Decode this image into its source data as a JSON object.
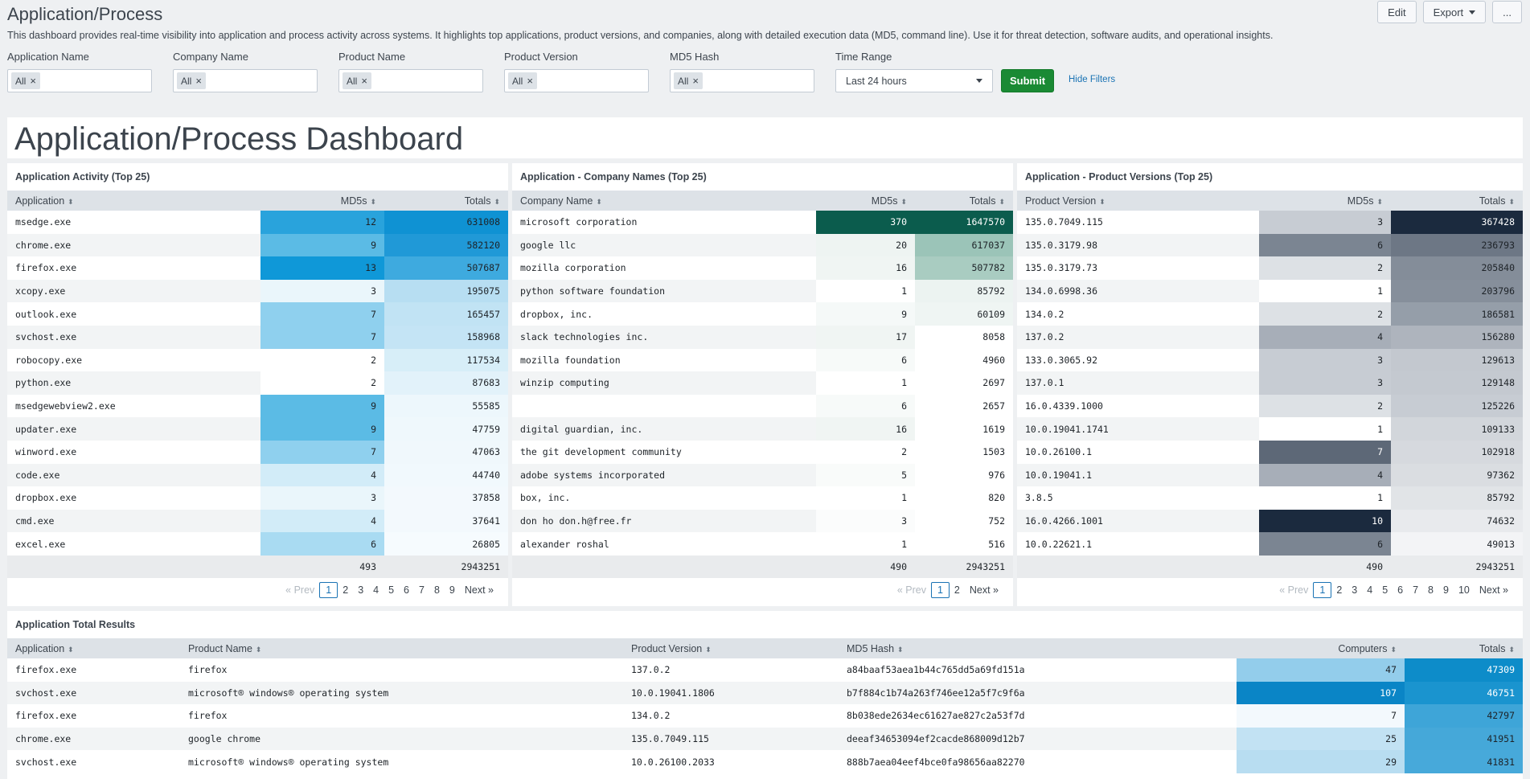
{
  "header": {
    "title": "Application/Process",
    "description": "This dashboard provides real-time visibility into application and process activity across systems. It highlights top applications, product versions, and companies, along with detailed execution data (MD5, command line). Use it for threat detection, software audits, and operational insights.",
    "edit_label": "Edit",
    "export_label": "Export",
    "more_label": "..."
  },
  "filters": {
    "items": [
      {
        "label": "Application Name",
        "chip": "All"
      },
      {
        "label": "Company Name",
        "chip": "All"
      },
      {
        "label": "Product Name",
        "chip": "All"
      },
      {
        "label": "Product Version",
        "chip": "All"
      },
      {
        "label": "MD5 Hash",
        "chip": "All"
      }
    ],
    "time_range_label": "Time Range",
    "time_range_value": "Last 24 hours",
    "submit_label": "Submit",
    "hide_filters_label": "Hide Filters"
  },
  "dashboard_title": "Application/Process Dashboard",
  "colors": {
    "blue_dark": "#0a8dcf",
    "green_dark": "#0a5a4b",
    "navy_dark": "#1b2a3e"
  },
  "panel_apps": {
    "title": "Application Activity (Top 25)",
    "columns": [
      "Application",
      "MD5s",
      "Totals"
    ],
    "rows": [
      {
        "name": "msedge.exe",
        "md5s": "12",
        "totals": "631008",
        "c1": "#29a3dc",
        "c2": "#0f92d3",
        "d1": false,
        "d2": false
      },
      {
        "name": "chrome.exe",
        "md5s": "9",
        "totals": "582120",
        "c1": "#5bbbe5",
        "c2": "#2099d7",
        "d1": false,
        "d2": false
      },
      {
        "name": "firefox.exe",
        "md5s": "13",
        "totals": "507687",
        "c1": "#0f98d8",
        "c2": "#3eaadf",
        "d1": false,
        "d2": false
      },
      {
        "name": "xcopy.exe",
        "md5s": "3",
        "totals": "195075",
        "c1": "#eaf6fb",
        "c2": "#b7def2",
        "d1": false,
        "d2": false
      },
      {
        "name": "outlook.exe",
        "md5s": "7",
        "totals": "165457",
        "c1": "#8fd0ee",
        "c2": "#c1e3f4",
        "d1": false,
        "d2": false
      },
      {
        "name": "svchost.exe",
        "md5s": "7",
        "totals": "158968",
        "c1": "#8fd0ee",
        "c2": "#c4e4f5",
        "d1": false,
        "d2": false
      },
      {
        "name": "robocopy.exe",
        "md5s": "2",
        "totals": "117534",
        "c1": "#ffffff",
        "c2": "#d7eef8",
        "d1": false,
        "d2": false
      },
      {
        "name": "python.exe",
        "md5s": "2",
        "totals": "87683",
        "c1": "#ffffff",
        "c2": "#e2f2fa",
        "d1": false,
        "d2": false
      },
      {
        "name": "msedgewebview2.exe",
        "md5s": "9",
        "totals": "55585",
        "c1": "#5bbbe5",
        "c2": "#edf7fc",
        "d1": false,
        "d2": false
      },
      {
        "name": "updater.exe",
        "md5s": "9",
        "totals": "47759",
        "c1": "#5bbbe5",
        "c2": "#eff8fc",
        "d1": false,
        "d2": false
      },
      {
        "name": "winword.exe",
        "md5s": "7",
        "totals": "47063",
        "c1": "#8fd0ee",
        "c2": "#f0f8fc",
        "d1": false,
        "d2": false
      },
      {
        "name": "code.exe",
        "md5s": "4",
        "totals": "44740",
        "c1": "#d2ecf8",
        "c2": "#f1f9fd",
        "d1": false,
        "d2": false
      },
      {
        "name": "dropbox.exe",
        "md5s": "3",
        "totals": "37858",
        "c1": "#eaf6fb",
        "c2": "#f3f9fd",
        "d1": false,
        "d2": false
      },
      {
        "name": "cmd.exe",
        "md5s": "4",
        "totals": "37641",
        "c1": "#d2ecf8",
        "c2": "#f3f9fd",
        "d1": false,
        "d2": false
      },
      {
        "name": "excel.exe",
        "md5s": "6",
        "totals": "26805",
        "c1": "#a9dbf2",
        "c2": "#f6fbfe",
        "d1": false,
        "d2": false
      }
    ],
    "total_md5s": "493",
    "total_totals": "2943251",
    "pager": {
      "prev": "« Prev",
      "pages": [
        "1",
        "2",
        "3",
        "4",
        "5",
        "6",
        "7",
        "8",
        "9"
      ],
      "next": "Next »"
    }
  },
  "panel_companies": {
    "title": "Application - Company Names (Top 25)",
    "columns": [
      "Company Name",
      "MD5s",
      "Totals"
    ],
    "rows": [
      {
        "name": "microsoft corporation",
        "md5s": "370",
        "totals": "1647570",
        "c1": "#0b5c4d",
        "c2": "#0b5c4d",
        "d1": true,
        "d2": true
      },
      {
        "name": "google llc",
        "md5s": "20",
        "totals": "617037",
        "c1": "#eef4f2",
        "c2": "#9bc4b8",
        "d1": false,
        "d2": false
      },
      {
        "name": "mozilla corporation",
        "md5s": "16",
        "totals": "507782",
        "c1": "#f0f5f3",
        "c2": "#a9ccc1",
        "d1": false,
        "d2": false
      },
      {
        "name": "python software foundation",
        "md5s": "1",
        "totals": "85792",
        "c1": "#ffffff",
        "c2": "#ecf3f1",
        "d1": false,
        "d2": false
      },
      {
        "name": "dropbox, inc.",
        "md5s": "9",
        "totals": "60109",
        "c1": "#f5f9f8",
        "c2": "#eff5f3",
        "d1": false,
        "d2": false
      },
      {
        "name": "slack technologies inc.",
        "md5s": "17",
        "totals": "8058",
        "c1": "#f0f5f3",
        "c2": "#ffffff",
        "d1": false,
        "d2": false
      },
      {
        "name": "mozilla foundation",
        "md5s": "6",
        "totals": "4960",
        "c1": "#f7faf9",
        "c2": "#ffffff",
        "d1": false,
        "d2": false
      },
      {
        "name": "winzip computing",
        "md5s": "1",
        "totals": "2697",
        "c1": "#ffffff",
        "c2": "#ffffff",
        "d1": false,
        "d2": false
      },
      {
        "name": "",
        "md5s": "6",
        "totals": "2657",
        "c1": "#f7faf9",
        "c2": "#ffffff",
        "d1": false,
        "d2": false
      },
      {
        "name": "digital guardian, inc.",
        "md5s": "16",
        "totals": "1619",
        "c1": "#f0f5f3",
        "c2": "#ffffff",
        "d1": false,
        "d2": false
      },
      {
        "name": "the git development community",
        "md5s": "2",
        "totals": "1503",
        "c1": "#ffffff",
        "c2": "#ffffff",
        "d1": false,
        "d2": false
      },
      {
        "name": "adobe systems incorporated",
        "md5s": "5",
        "totals": "976",
        "c1": "#f9fbfa",
        "c2": "#ffffff",
        "d1": false,
        "d2": false
      },
      {
        "name": "box, inc.",
        "md5s": "1",
        "totals": "820",
        "c1": "#ffffff",
        "c2": "#ffffff",
        "d1": false,
        "d2": false
      },
      {
        "name": "don ho don.h@free.fr",
        "md5s": "3",
        "totals": "752",
        "c1": "#fbfcfc",
        "c2": "#ffffff",
        "d1": false,
        "d2": false
      },
      {
        "name": "alexander roshal",
        "md5s": "1",
        "totals": "516",
        "c1": "#ffffff",
        "c2": "#ffffff",
        "d1": false,
        "d2": false
      }
    ],
    "total_md5s": "490",
    "total_totals": "2943251",
    "pager": {
      "prev": "« Prev",
      "pages": [
        "1",
        "2"
      ],
      "next": "Next »"
    }
  },
  "panel_versions": {
    "title": "Application - Product Versions (Top 25)",
    "columns": [
      "Product Version",
      "MD5s",
      "Totals"
    ],
    "rows": [
      {
        "name": "135.0.7049.115",
        "md5s": "3",
        "totals": "367428",
        "c1": "#c7ccd3",
        "c2": "#1b2a3e",
        "d1": false,
        "d2": true
      },
      {
        "name": "135.0.3179.98",
        "md5s": "6",
        "totals": "236793",
        "c1": "#7b8592",
        "c2": "#6d7785",
        "d1": false,
        "d2": false
      },
      {
        "name": "135.0.3179.73",
        "md5s": "2",
        "totals": "205840",
        "c1": "#dde1e5",
        "c2": "#848d99",
        "d1": false,
        "d2": false
      },
      {
        "name": "134.0.6998.36",
        "md5s": "1",
        "totals": "203796",
        "c1": "#ffffff",
        "c2": "#868f9b",
        "d1": false,
        "d2": false
      },
      {
        "name": "134.0.2",
        "md5s": "2",
        "totals": "186581",
        "c1": "#dde1e5",
        "c2": "#959ea9",
        "d1": false,
        "d2": false
      },
      {
        "name": "137.0.2",
        "md5s": "4",
        "totals": "156280",
        "c1": "#a7aeb8",
        "c2": "#aeb4bd",
        "d1": false,
        "d2": false
      },
      {
        "name": "133.0.3065.92",
        "md5s": "3",
        "totals": "129613",
        "c1": "#c7ccd3",
        "c2": "#c3c8cf",
        "d1": false,
        "d2": false
      },
      {
        "name": "137.0.1",
        "md5s": "3",
        "totals": "129148",
        "c1": "#c7ccd3",
        "c2": "#c4c9d0",
        "d1": false,
        "d2": false
      },
      {
        "name": "16.0.4339.1000",
        "md5s": "2",
        "totals": "125226",
        "c1": "#dde1e5",
        "c2": "#c7ccd3",
        "d1": false,
        "d2": false
      },
      {
        "name": "10.0.19041.1741",
        "md5s": "1",
        "totals": "109133",
        "c1": "#ffffff",
        "c2": "#d2d6db",
        "d1": false,
        "d2": false
      },
      {
        "name": "10.0.26100.1",
        "md5s": "7",
        "totals": "102918",
        "c1": "#5d6877",
        "c2": "#d6d9de",
        "d1": true,
        "d2": false
      },
      {
        "name": "10.0.19041.1",
        "md5s": "4",
        "totals": "97362",
        "c1": "#a7aeb8",
        "c2": "#dadde1",
        "d1": false,
        "d2": false
      },
      {
        "name": "3.8.5",
        "md5s": "1",
        "totals": "85792",
        "c1": "#ffffff",
        "c2": "#e1e4e7",
        "d1": false,
        "d2": false
      },
      {
        "name": "16.0.4266.1001",
        "md5s": "10",
        "totals": "74632",
        "c1": "#1b2a3e",
        "c2": "#e8eaed",
        "d1": true,
        "d2": false
      },
      {
        "name": "10.0.22621.1",
        "md5s": "6",
        "totals": "49013",
        "c1": "#7b8592",
        "c2": "#f3f4f6",
        "d1": false,
        "d2": false
      }
    ],
    "total_md5s": "490",
    "total_totals": "2943251",
    "pager": {
      "prev": "« Prev",
      "pages": [
        "1",
        "2",
        "3",
        "4",
        "5",
        "6",
        "7",
        "8",
        "9",
        "10"
      ],
      "next": "Next »"
    }
  },
  "panel_results": {
    "title": "Application Total Results",
    "columns": [
      "Application",
      "Product Name",
      "Product Version",
      "MD5 Hash",
      "Computers",
      "Totals"
    ],
    "rows": [
      {
        "app": "firefox.exe",
        "product": "firefox",
        "version": "137.0.2",
        "md5": "a84baaf53aea1b44c765dd5a69fd151a",
        "computers": "47",
        "totals": "47309",
        "c1": "#93cdeb",
        "c2": "#0d8cc9",
        "d1": false,
        "d2": true
      },
      {
        "app": "svchost.exe",
        "product": "microsoft® windows® operating system",
        "version": "10.0.19041.1806",
        "md5": "b7f884c1b74a263f746ee12a5f7c9f6a",
        "computers": "107",
        "totals": "46751",
        "c1": "#0a85c6",
        "c2": "#1a94cf",
        "d1": true,
        "d2": true
      },
      {
        "app": "firefox.exe",
        "product": "firefox",
        "version": "134.0.2",
        "md5": "8b038ede2634ec61627ae827c2a53f7d",
        "computers": "7",
        "totals": "42797",
        "c1": "#f3f9fd",
        "c2": "#3ea5d8",
        "d1": false,
        "d2": false
      },
      {
        "app": "chrome.exe",
        "product": "google chrome",
        "version": "135.0.7049.115",
        "md5": "deeaf34653094ef2cacde868009d12b7",
        "computers": "25",
        "totals": "41951",
        "c1": "#c2e2f3",
        "c2": "#45a8d9",
        "d1": false,
        "d2": false
      },
      {
        "app": "svchost.exe",
        "product": "microsoft® windows® operating system",
        "version": "10.0.26100.2033",
        "md5": "888b7aea04eef4bce0fa98656aa82270",
        "computers": "29",
        "totals": "41831",
        "c1": "#b8ddf1",
        "c2": "#47a9da",
        "d1": false,
        "d2": false
      }
    ]
  }
}
